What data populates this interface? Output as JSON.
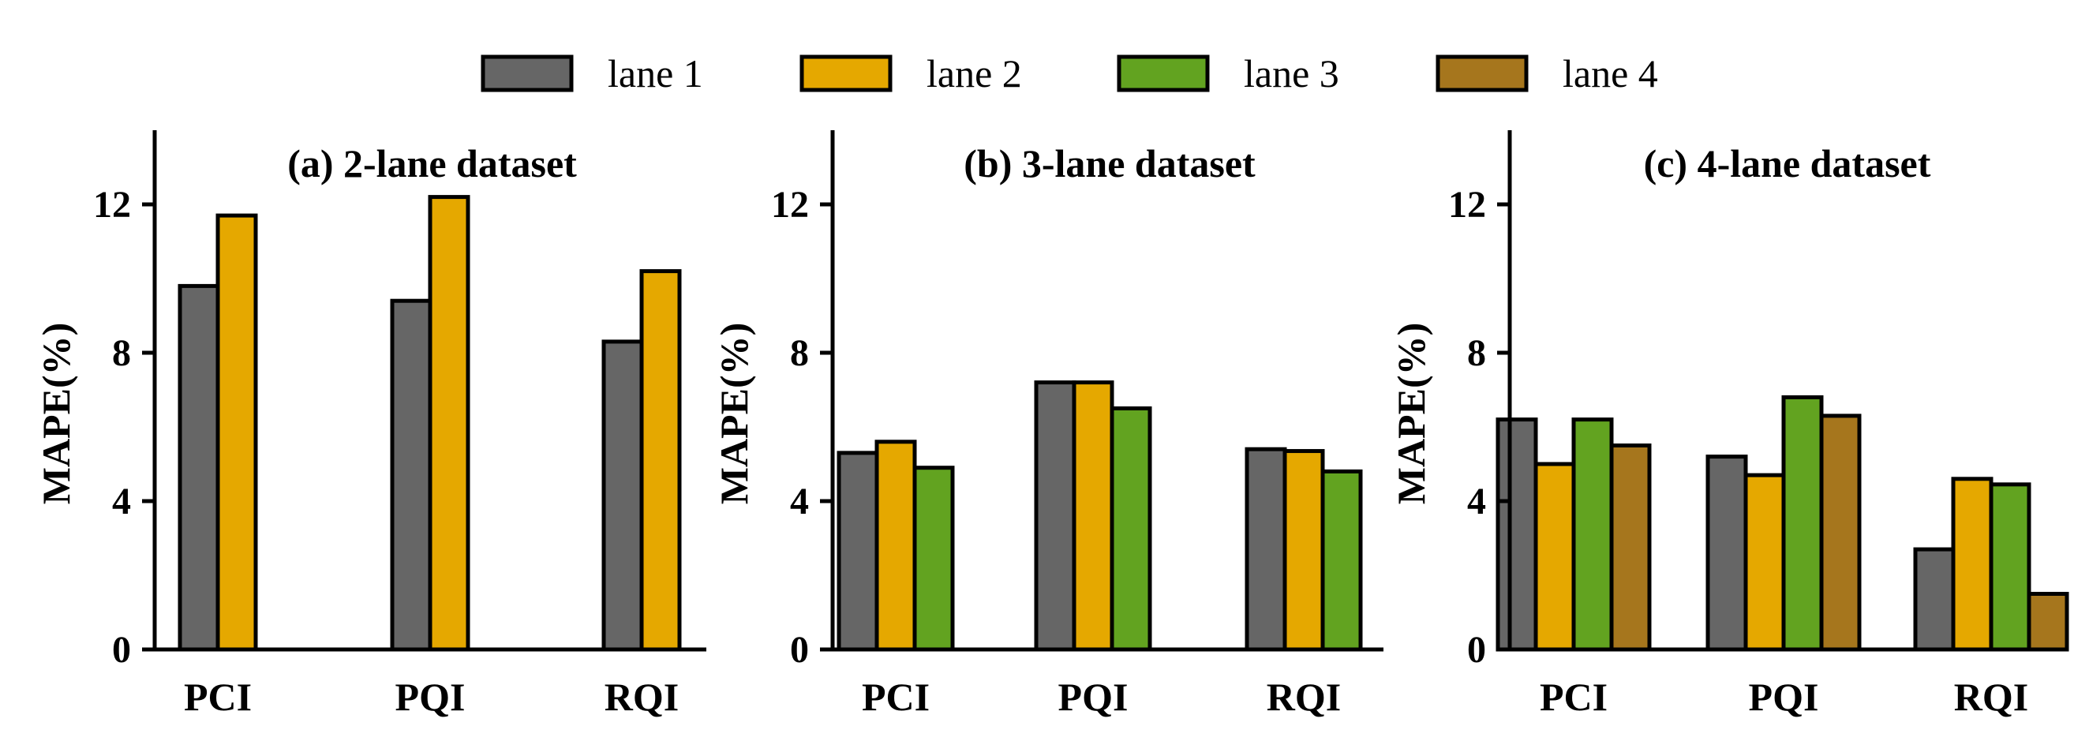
{
  "legend": [
    {
      "label": "lane 1",
      "color": "#666666"
    },
    {
      "label": "lane 2",
      "color": "#e5a800"
    },
    {
      "label": "lane 3",
      "color": "#62a320"
    },
    {
      "label": "lane 4",
      "color": "#a6761d"
    }
  ],
  "chart_data": [
    {
      "type": "bar",
      "title": "(a) 2-lane dataset",
      "ylabel": "MAPE(%)",
      "xlabel": "",
      "ylim": [
        0,
        14
      ],
      "yticks": [
        0,
        4,
        8,
        12
      ],
      "categories": [
        "PCI",
        "PQI",
        "RQI"
      ],
      "series": [
        {
          "name": "lane 1",
          "values": [
            9.8,
            9.4,
            8.3
          ]
        },
        {
          "name": "lane 2",
          "values": [
            11.7,
            12.2,
            10.2
          ]
        }
      ]
    },
    {
      "type": "bar",
      "title": "(b) 3-lane dataset",
      "ylabel": "MAPE(%)",
      "xlabel": "",
      "ylim": [
        0,
        14
      ],
      "yticks": [
        0,
        4,
        8,
        12
      ],
      "categories": [
        "PCI",
        "PQI",
        "RQI"
      ],
      "series": [
        {
          "name": "lane 1",
          "values": [
            5.3,
            7.2,
            5.4
          ]
        },
        {
          "name": "lane 2",
          "values": [
            5.6,
            7.2,
            5.35
          ]
        },
        {
          "name": "lane 3",
          "values": [
            4.9,
            6.5,
            4.8
          ]
        }
      ]
    },
    {
      "type": "bar",
      "title": "(c) 4-lane dataset",
      "ylabel": "MAPE(%)",
      "xlabel": "",
      "ylim": [
        0,
        14
      ],
      "yticks": [
        0,
        4,
        8,
        12
      ],
      "categories": [
        "PCI",
        "PQI",
        "RQI"
      ],
      "series": [
        {
          "name": "lane 1",
          "values": [
            6.2,
            5.2,
            2.7
          ]
        },
        {
          "name": "lane 2",
          "values": [
            5.0,
            4.7,
            4.6
          ]
        },
        {
          "name": "lane 3",
          "values": [
            6.2,
            6.8,
            4.45
          ]
        },
        {
          "name": "lane 4",
          "values": [
            5.5,
            6.3,
            1.5
          ]
        }
      ]
    }
  ]
}
